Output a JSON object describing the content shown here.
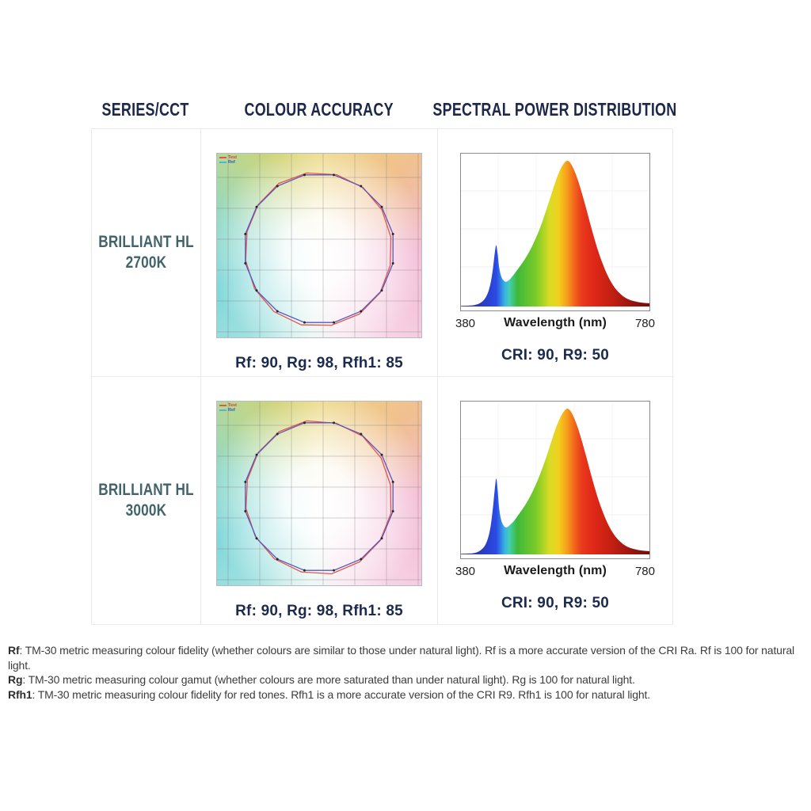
{
  "header": {
    "series": "SERIES/CCT",
    "accuracy": "COLOUR ACCURACY",
    "spd": "SPECTRAL POWER DISTRIBUTION"
  },
  "rows": [
    {
      "series_line1": "BRILLIANT HL",
      "series_line2": "2700K",
      "metrics": "Rf: 90, Rg: 98, Rfh1: 85",
      "cri": "CRI: 90, R9: 50"
    },
    {
      "series_line1": "BRILLIANT HL",
      "series_line2": "3000K",
      "metrics": "Rf: 90, Rg: 98, Rfh1: 85",
      "cri": "CRI: 90, R9: 50"
    }
  ],
  "spd_axis": {
    "xmin_label": "380",
    "xlabel": "Wavelength (nm)",
    "xmax_label": "780"
  },
  "tm30_legend": {
    "test": "Test",
    "ref": "Ref"
  },
  "footnotes": [
    {
      "term": "Rf",
      "text": ": TM-30 metric measuring colour fidelity (whether colours are similar to those under natural light). Rf is a more accurate version of the CRI Ra. Rf is 100 for natural light."
    },
    {
      "term": "Rg",
      "text": ": TM-30 metric measuring colour gamut (whether colours are more saturated than under natural light). Rg is 100 for natural light."
    },
    {
      "term": "Rfh1",
      "text": ": TM-30 metric measuring colour fidelity for red tones. Rfh1 is a more accurate version of the CRI R9. Rfh1 is 100 for natural light."
    }
  ],
  "colors": {
    "header_navy": "#1d2749",
    "metrics_navy": "#1b2a4d",
    "series_teal": "#41646a",
    "table_border": "#e9e9e9",
    "tm30_test": "#e25848",
    "tm30_ref": "#5b55c0"
  },
  "chart_data": [
    {
      "name": "spd_2700k",
      "type": "area",
      "title": "Spectral Power Distribution - Brilliant HL 2700K",
      "xlabel": "Wavelength (nm)",
      "xlim": [
        380,
        780
      ],
      "ylim": [
        0,
        1
      ],
      "grid": true,
      "points": [
        [
          380,
          0.004
        ],
        [
          398,
          0.006
        ],
        [
          410,
          0.01
        ],
        [
          420,
          0.02
        ],
        [
          430,
          0.045
        ],
        [
          438,
          0.09
        ],
        [
          444,
          0.16
        ],
        [
          449,
          0.26
        ],
        [
          453,
          0.37
        ],
        [
          456,
          0.42
        ],
        [
          459,
          0.36
        ],
        [
          462,
          0.27
        ],
        [
          466,
          0.21
        ],
        [
          471,
          0.18
        ],
        [
          477,
          0.17
        ],
        [
          484,
          0.185
        ],
        [
          492,
          0.215
        ],
        [
          500,
          0.25
        ],
        [
          510,
          0.295
        ],
        [
          520,
          0.345
        ],
        [
          530,
          0.405
        ],
        [
          540,
          0.475
        ],
        [
          550,
          0.555
        ],
        [
          560,
          0.65
        ],
        [
          570,
          0.75
        ],
        [
          580,
          0.85
        ],
        [
          590,
          0.935
        ],
        [
          598,
          0.98
        ],
        [
          605,
          1.0
        ],
        [
          612,
          0.985
        ],
        [
          620,
          0.935
        ],
        [
          628,
          0.865
        ],
        [
          636,
          0.78
        ],
        [
          645,
          0.675
        ],
        [
          654,
          0.565
        ],
        [
          663,
          0.46
        ],
        [
          672,
          0.365
        ],
        [
          681,
          0.285
        ],
        [
          690,
          0.215
        ],
        [
          700,
          0.155
        ],
        [
          710,
          0.11
        ],
        [
          720,
          0.078
        ],
        [
          730,
          0.056
        ],
        [
          740,
          0.042
        ],
        [
          752,
          0.032
        ],
        [
          764,
          0.026
        ],
        [
          780,
          0.022
        ]
      ],
      "spectrum_gradient": [
        [
          0,
          "#312d8a"
        ],
        [
          0.13,
          "#2a3ec8"
        ],
        [
          0.19,
          "#2b4ae4"
        ],
        [
          0.235,
          "#38b4e4"
        ],
        [
          0.26,
          "#43cfae"
        ],
        [
          0.3,
          "#3eb93a"
        ],
        [
          0.4,
          "#7ccb28"
        ],
        [
          0.47,
          "#d8dc24"
        ],
        [
          0.52,
          "#f2cf1f"
        ],
        [
          0.56,
          "#f6a01c"
        ],
        [
          0.6,
          "#f2671c"
        ],
        [
          0.64,
          "#e83a1c"
        ],
        [
          0.7,
          "#e02818"
        ],
        [
          0.8,
          "#c11f12"
        ],
        [
          0.9,
          "#9a150e"
        ],
        [
          1,
          "#70100b"
        ]
      ]
    },
    {
      "name": "spd_3000k",
      "type": "area",
      "title": "Spectral Power Distribution - Brilliant HL 3000K",
      "xlabel": "Wavelength (nm)",
      "xlim": [
        380,
        780
      ],
      "ylim": [
        0,
        1
      ],
      "grid": true,
      "points": [
        [
          380,
          0.004
        ],
        [
          398,
          0.006
        ],
        [
          410,
          0.01
        ],
        [
          420,
          0.022
        ],
        [
          430,
          0.05
        ],
        [
          438,
          0.105
        ],
        [
          444,
          0.19
        ],
        [
          449,
          0.32
        ],
        [
          453,
          0.45
        ],
        [
          456,
          0.52
        ],
        [
          459,
          0.44
        ],
        [
          462,
          0.32
        ],
        [
          466,
          0.24
        ],
        [
          471,
          0.2
        ],
        [
          477,
          0.185
        ],
        [
          484,
          0.2
        ],
        [
          492,
          0.225
        ],
        [
          500,
          0.26
        ],
        [
          510,
          0.305
        ],
        [
          520,
          0.355
        ],
        [
          530,
          0.415
        ],
        [
          540,
          0.485
        ],
        [
          550,
          0.565
        ],
        [
          560,
          0.655
        ],
        [
          570,
          0.755
        ],
        [
          580,
          0.855
        ],
        [
          590,
          0.935
        ],
        [
          598,
          0.98
        ],
        [
          605,
          1.0
        ],
        [
          612,
          0.985
        ],
        [
          620,
          0.935
        ],
        [
          628,
          0.865
        ],
        [
          636,
          0.78
        ],
        [
          645,
          0.675
        ],
        [
          654,
          0.565
        ],
        [
          663,
          0.46
        ],
        [
          672,
          0.365
        ],
        [
          681,
          0.285
        ],
        [
          690,
          0.215
        ],
        [
          700,
          0.155
        ],
        [
          710,
          0.11
        ],
        [
          720,
          0.078
        ],
        [
          730,
          0.056
        ],
        [
          740,
          0.042
        ],
        [
          752,
          0.032
        ],
        [
          764,
          0.026
        ],
        [
          780,
          0.022
        ]
      ],
      "spectrum_gradient": [
        [
          0,
          "#312d8a"
        ],
        [
          0.13,
          "#2a3ec8"
        ],
        [
          0.19,
          "#2b4ae4"
        ],
        [
          0.235,
          "#38b4e4"
        ],
        [
          0.26,
          "#43cfae"
        ],
        [
          0.3,
          "#3eb93a"
        ],
        [
          0.4,
          "#7ccb28"
        ],
        [
          0.47,
          "#d8dc24"
        ],
        [
          0.52,
          "#f2cf1f"
        ],
        [
          0.56,
          "#f6a01c"
        ],
        [
          0.6,
          "#f2671c"
        ],
        [
          0.64,
          "#e83a1c"
        ],
        [
          0.7,
          "#e02818"
        ],
        [
          0.8,
          "#c11f12"
        ],
        [
          0.9,
          "#9a150e"
        ],
        [
          1,
          "#70100b"
        ]
      ]
    },
    {
      "name": "tm30_2700k",
      "type": "line",
      "title": "TM-30 Colour Vector Graphic - Brilliant HL 2700K",
      "legend": [
        "Test",
        "Ref"
      ],
      "n_vertices": 16,
      "center": [
        129,
        120
      ],
      "ref_radius": 95,
      "start_angle_deg": -78.75,
      "test_radii_scale": [
        1.01,
        1.0,
        0.98,
        0.965,
        0.97,
        1.0,
        1.02,
        1.03,
        1.04,
        1.03,
        1.01,
        0.99,
        0.985,
        1.0,
        1.02,
        1.02
      ],
      "test_angle_offset_deg": 2,
      "grid_step": 40
    },
    {
      "name": "tm30_3000k",
      "type": "line",
      "title": "TM-30 Colour Vector Graphic - Brilliant HL 3000K",
      "legend": [
        "Test",
        "Ref"
      ],
      "n_vertices": 16,
      "center": [
        129,
        120
      ],
      "ref_radius": 95,
      "start_angle_deg": -78.75,
      "test_radii_scale": [
        1.0,
        0.99,
        0.97,
        0.96,
        0.98,
        1.0,
        1.02,
        1.04,
        1.03,
        1.02,
        1.0,
        0.985,
        0.98,
        1.0,
        1.015,
        1.02
      ],
      "test_angle_offset_deg": 2,
      "grid_step": 40
    }
  ]
}
